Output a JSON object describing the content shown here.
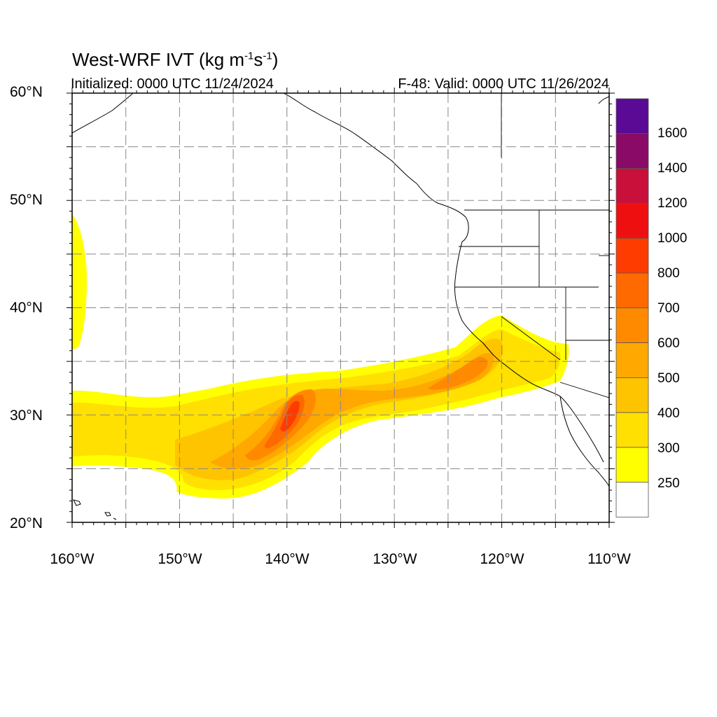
{
  "title": {
    "main": "West-WRF IVT (kg m",
    "sup1": "-1",
    "mid": "s",
    "sup2": "-1",
    "end": ")"
  },
  "subtitle_left": "Initialized: 0000 UTC 11/24/2024",
  "subtitle_right": "F-48: Valid: 0000 UTC 11/26/2024",
  "map": {
    "lat_labels": [
      "60°N",
      "50°N",
      "40°N",
      "30°N",
      "20°N"
    ],
    "lon_labels": [
      "160°W",
      "150°W",
      "140°W",
      "130°W",
      "120°W",
      "110°W"
    ],
    "extent": {
      "lon_min": -160,
      "lon_max": -110,
      "lat_min": 20,
      "lat_max": 60
    },
    "feature": "atmospheric river toward central California"
  },
  "colorbar": {
    "labels": [
      "1600",
      "1400",
      "1200",
      "1000",
      "800",
      "700",
      "600",
      "500",
      "400",
      "300",
      "250"
    ],
    "levels": [
      250,
      300,
      400,
      500,
      600,
      700,
      800,
      1000,
      1200,
      1400,
      1600
    ],
    "colors": [
      "#ffffff",
      "#ffff00",
      "#ffe000",
      "#ffc400",
      "#ffa800",
      "#ff8a00",
      "#ff6a00",
      "#ff3c00",
      "#ee1010",
      "#c8103a",
      "#8a0a68",
      "#5a0a94"
    ]
  }
}
